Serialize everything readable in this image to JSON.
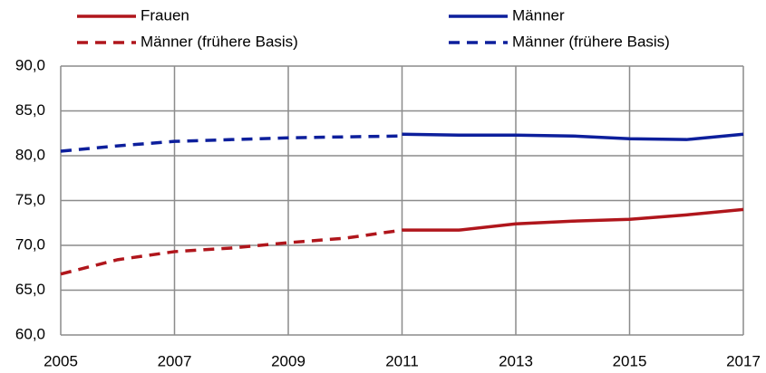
{
  "chart_data": {
    "type": "line",
    "x": [
      2005,
      2006,
      2007,
      2008,
      2009,
      2010,
      2011,
      2012,
      2013,
      2014,
      2015,
      2016,
      2017
    ],
    "series": [
      {
        "name": "Frauen",
        "color": "#b0161c",
        "dash": false,
        "values": [
          null,
          null,
          null,
          null,
          null,
          null,
          71.7,
          71.7,
          72.4,
          72.7,
          72.9,
          73.4,
          74.0
        ]
      },
      {
        "name": "Männer",
        "color": "#0d1f9c",
        "dash": false,
        "values": [
          null,
          null,
          null,
          null,
          null,
          null,
          82.4,
          82.3,
          82.3,
          82.2,
          81.9,
          81.8,
          82.4
        ]
      },
      {
        "name": "Männer (frühere Basis)",
        "color": "#b0161c",
        "dash": true,
        "values": [
          66.8,
          68.4,
          69.3,
          69.7,
          70.3,
          70.8,
          71.7,
          null,
          null,
          null,
          null,
          null,
          null
        ]
      },
      {
        "name": "Männer (frühere Basis)",
        "color": "#0d1f9c",
        "dash": true,
        "values": [
          80.5,
          81.1,
          81.6,
          81.8,
          82.0,
          82.1,
          82.2,
          null,
          null,
          null,
          null,
          null,
          null
        ]
      }
    ],
    "xlim": [
      2005,
      2017
    ],
    "xticks": [
      2005,
      2007,
      2009,
      2011,
      2013,
      2015,
      2017
    ],
    "ylim": [
      60,
      90
    ],
    "yticks": [
      {
        "value": 60,
        "label": "60,0"
      },
      {
        "value": 65,
        "label": "65,0"
      },
      {
        "value": 70,
        "label": "70,0"
      },
      {
        "value": 75,
        "label": "75,0"
      },
      {
        "value": 80,
        "label": "80,0"
      },
      {
        "value": 85,
        "label": "85,0"
      },
      {
        "value": 90,
        "label": "90,0"
      }
    ],
    "grid": true
  }
}
